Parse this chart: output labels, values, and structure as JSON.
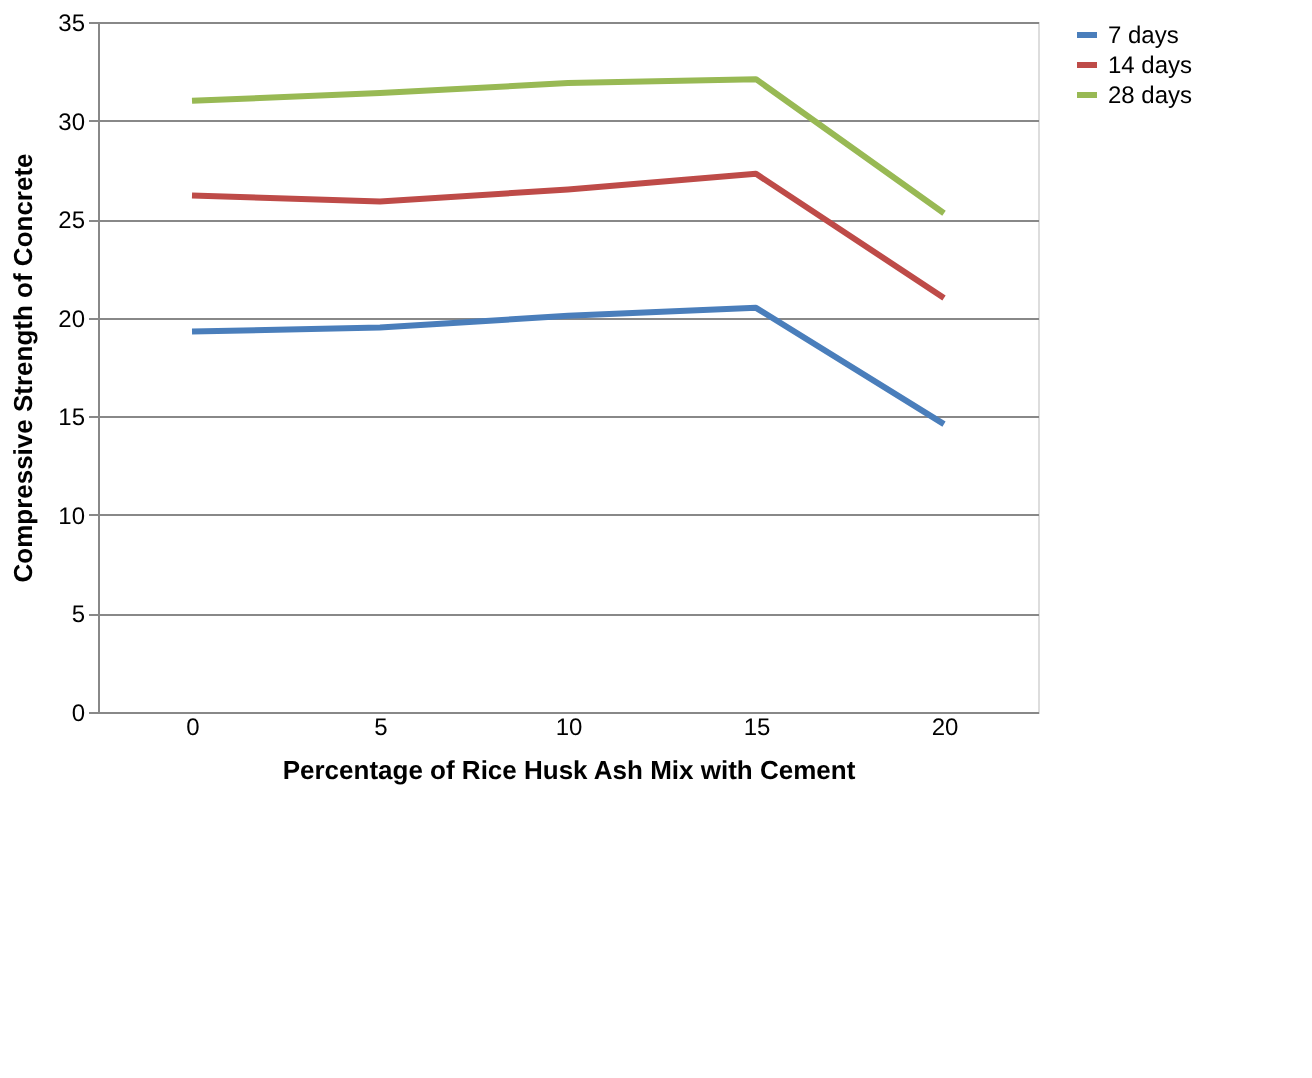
{
  "chart_data": {
    "type": "line",
    "xlabel": "Percentage of Rice Husk Ash Mix with Cement",
    "ylabel": "Compressive Strength of Concrete",
    "categories": [
      "0",
      "5",
      "10",
      "15",
      "20"
    ],
    "series": [
      {
        "name": "7 days",
        "color": "#4a7ebb",
        "values": [
          19.3,
          19.5,
          20.1,
          20.5,
          14.6
        ]
      },
      {
        "name": "14 days",
        "color": "#be4b48",
        "values": [
          26.2,
          25.9,
          26.5,
          27.3,
          21.0
        ]
      },
      {
        "name": "28 days",
        "color": "#98b954",
        "values": [
          31.0,
          31.4,
          31.9,
          32.1,
          25.3
        ]
      }
    ],
    "ylim": [
      0,
      35
    ],
    "yticks": [
      0,
      5,
      10,
      15,
      20,
      25,
      30,
      35
    ],
    "grid": "y",
    "legend": "right",
    "marker": "none",
    "line_style": "solid"
  }
}
